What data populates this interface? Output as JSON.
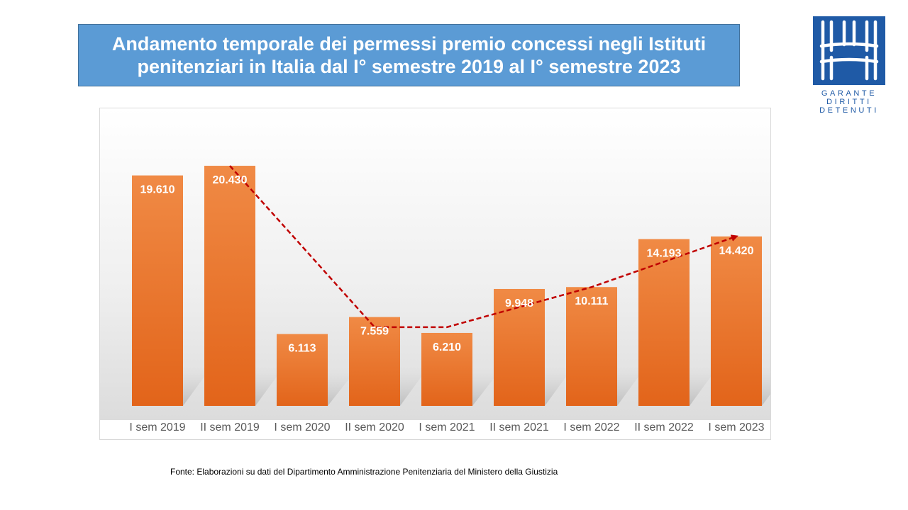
{
  "title": "Andamento temporale dei permessi premio concessi negli Istituti penitenziari in Italia  dal I° semestre 2019 al I° semestre 2023",
  "logo": {
    "lines": [
      "GARANTE",
      "DIRITTI",
      "DETENUTI"
    ],
    "color": "#1f5aa6"
  },
  "source_note": "Fonte:  Elaborazioni su dati del Dipartimento  Amministrazione Penitenziaria del Ministero della Giustizia",
  "chart_data": {
    "type": "bar",
    "title": "",
    "xlabel": "",
    "ylabel": "",
    "categories": [
      "I sem 2019",
      "II sem 2019",
      "I sem 2020",
      "II sem 2020",
      "I sem 2021",
      "II sem 2021",
      "I sem 2022",
      "II sem 2022",
      "I sem 2023"
    ],
    "values": [
      19610,
      20430,
      6113,
      7559,
      6210,
      9948,
      10111,
      14193,
      14420
    ],
    "value_labels": [
      "19.610",
      "20.430",
      "6.113",
      "7.559",
      "6.210",
      "9.948",
      "10.111",
      "14.193",
      "14.420"
    ],
    "ylim": [
      0,
      22000
    ],
    "grid": false,
    "legend": "none",
    "bar_color": "#ed7d31",
    "trend_arrow": {
      "color": "#c00000",
      "style": "dashed",
      "points": [
        {
          "category": "II sem 2019",
          "value": 20430
        },
        {
          "category": "II sem 2020",
          "value": 6700
        },
        {
          "category": "I sem 2021",
          "value": 6700
        },
        {
          "category": "I sem 2022",
          "value": 10111
        },
        {
          "category": "I sem 2023",
          "value": 14420
        }
      ]
    }
  }
}
